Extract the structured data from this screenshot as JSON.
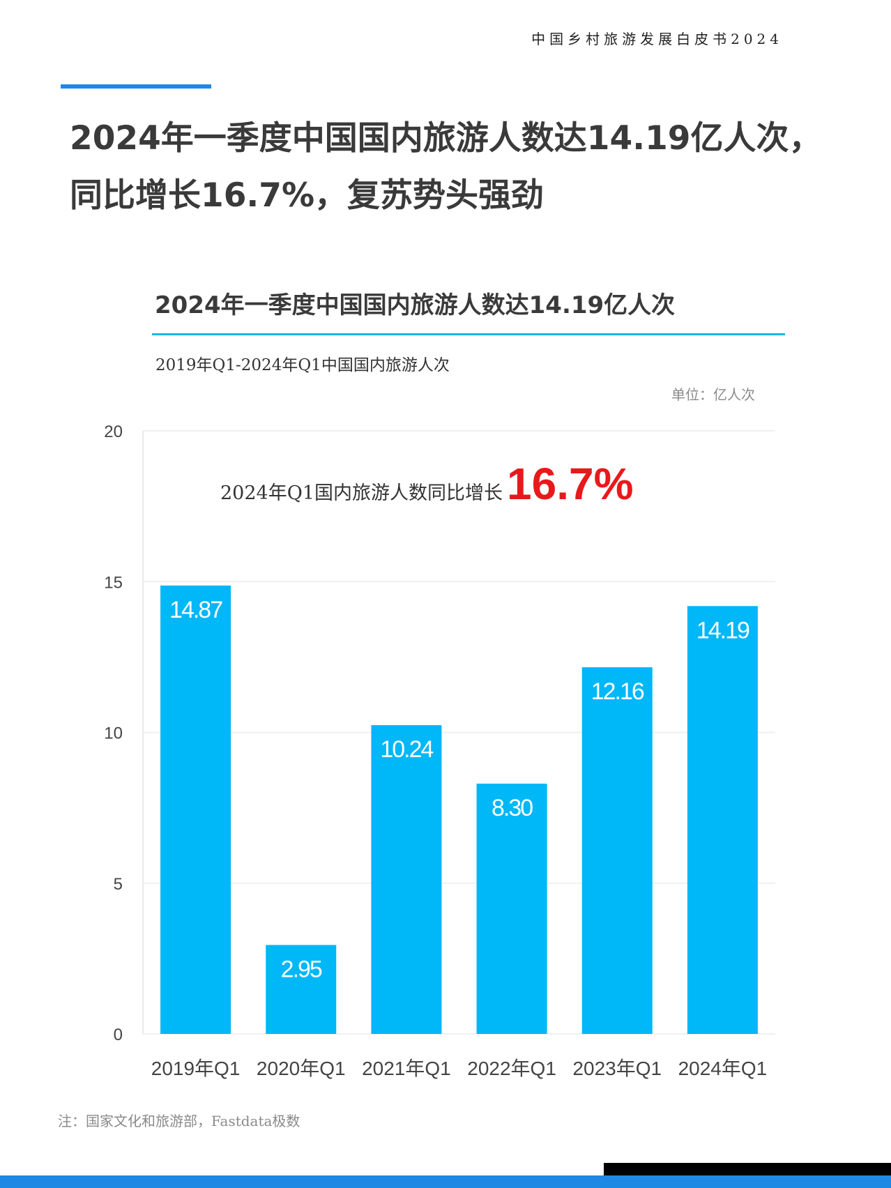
{
  "header": {
    "report_title": "中国乡村旅游发展白皮书2024"
  },
  "headline": {
    "line1": "2024年一季度中国国内旅游人数达14.19亿人次，",
    "line2": "同比增长16.7%，复苏势头强劲"
  },
  "chart_data": {
    "type": "bar",
    "title": "2024年一季度中国国内旅游人数达14.19亿人次",
    "subtitle": "2019年Q1-2024年Q1中国国内旅游人次",
    "unit": "单位：亿人次",
    "annotation": {
      "text": "2024年Q1国内旅游人数同比增长",
      "highlight": "16.7%"
    },
    "categories": [
      "2019年Q1",
      "2020年Q1",
      "2021年Q1",
      "2022年Q1",
      "2023年Q1",
      "2024年Q1"
    ],
    "values": [
      14.87,
      2.95,
      10.24,
      8.3,
      12.16,
      14.19
    ],
    "value_labels": [
      "14.87",
      "2.95",
      "10.24",
      "8.30",
      "12.16",
      "14.19"
    ],
    "ylim": [
      0,
      20
    ],
    "yticks": [
      "0",
      "5",
      "10",
      "15",
      "20"
    ],
    "grid": true,
    "bar_color": "#00b7f8",
    "highlight_color": "#e8191b"
  },
  "footer": {
    "note": "注：国家文化和旅游部，Fastdata极数"
  }
}
